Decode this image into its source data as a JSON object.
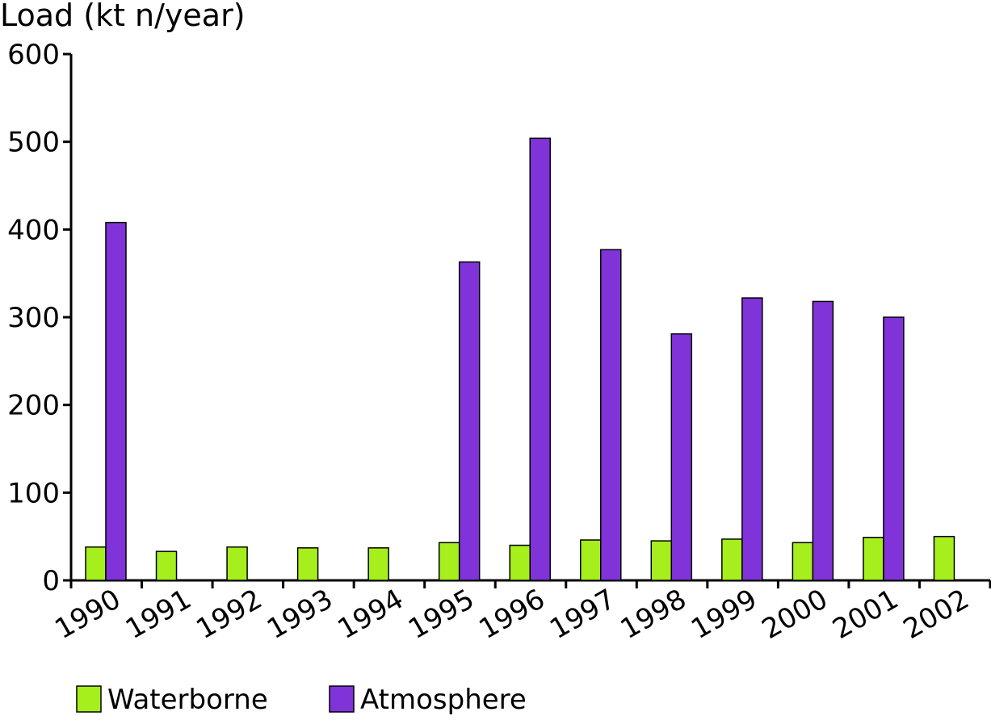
{
  "chart_data": {
    "type": "bar",
    "ylabel": "Load (kt n/year)",
    "xlabel": "",
    "ylim": [
      0,
      600
    ],
    "yticks": [
      0,
      100,
      200,
      300,
      400,
      500,
      600
    ],
    "grid": false,
    "legend_position": "bottom-left",
    "categories": [
      "1990",
      "1991",
      "1992",
      "1993",
      "1994",
      "1995",
      "1996",
      "1997",
      "1998",
      "1999",
      "2000",
      "2001",
      "2002"
    ],
    "series": [
      {
        "name": "Waterborne",
        "color": "#a6ee1c",
        "values": [
          38,
          33,
          38,
          37,
          37,
          43,
          40,
          46,
          45,
          47,
          43,
          49,
          50
        ]
      },
      {
        "name": "Atmosphere",
        "color": "#8033d9",
        "values": [
          408,
          null,
          null,
          null,
          null,
          363,
          504,
          377,
          281,
          322,
          318,
          300,
          null
        ]
      }
    ]
  }
}
